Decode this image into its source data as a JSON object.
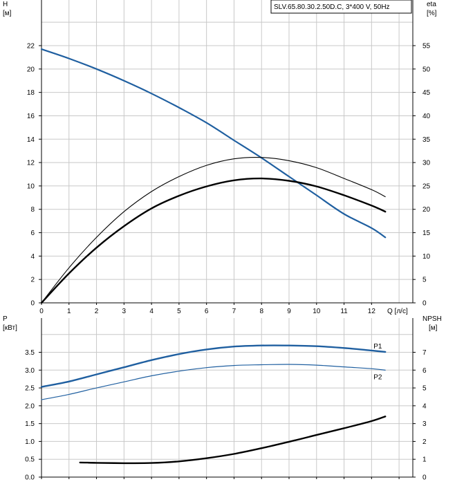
{
  "model_box": {
    "text": "SLV.65.80.30.2.50D.C, 3*400 V, 50Hz"
  },
  "colors": {
    "blue": "#1f5fa0",
    "black": "#000000",
    "grid": "#c8c8c8"
  },
  "top": {
    "left_label": [
      "H",
      "[м]"
    ],
    "right_label": [
      "eta",
      "[%]"
    ],
    "x_label": "Q [л/с]"
  },
  "bottom": {
    "left_label": [
      "P",
      "[кВт]"
    ],
    "right_label": [
      "NPSH",
      "[м]"
    ]
  },
  "chart_data": [
    {
      "type": "line",
      "title": "",
      "xlabel": "Q [л/с]",
      "ylabel": "H [м]",
      "y2label": "eta [%]",
      "xlim": [
        0,
        13.5
      ],
      "ylim": [
        0,
        24.5
      ],
      "y2lim": [
        0,
        61.25
      ],
      "x_ticks": [
        "0",
        "1",
        "2",
        "3",
        "4",
        "5",
        "6",
        "7",
        "8",
        "9",
        "10",
        "11",
        "12"
      ],
      "y_ticks": [
        "0",
        "2",
        "4",
        "6",
        "8",
        "10",
        "12",
        "14",
        "16",
        "18",
        "20",
        "22"
      ],
      "y2_ticks": [
        "0",
        "5",
        "10",
        "15",
        "20",
        "25",
        "30",
        "35",
        "40",
        "45",
        "50",
        "55"
      ],
      "grid": true,
      "series": [
        {
          "name": "H",
          "axis": "left",
          "color": "#1f5fa0",
          "width": 2.2,
          "x": [
            0,
            1,
            2,
            3,
            4,
            5,
            6,
            7,
            8,
            9,
            10,
            11,
            12,
            12.5
          ],
          "y": [
            21.7,
            20.9,
            20.0,
            19.0,
            17.9,
            16.7,
            15.4,
            13.9,
            12.4,
            10.8,
            9.2,
            7.6,
            6.4,
            5.6
          ]
        },
        {
          "name": "",
          "axis": "right",
          "color": "#000000",
          "width": 1.1,
          "x": [
            0,
            1,
            2,
            3,
            4,
            5,
            6,
            7,
            8,
            9,
            10,
            11,
            12,
            12.5
          ],
          "y": [
            0,
            7.5,
            14.0,
            19.5,
            23.8,
            27.0,
            29.4,
            30.8,
            31.1,
            30.4,
            28.9,
            26.6,
            24.2,
            22.7
          ]
        },
        {
          "name": "",
          "axis": "right",
          "color": "#000000",
          "width": 2.4,
          "x": [
            0,
            1,
            2,
            3,
            4,
            5,
            6,
            7,
            8,
            9,
            10,
            11,
            12,
            12.5
          ],
          "y": [
            0,
            6.3,
            11.8,
            16.4,
            20.2,
            22.9,
            24.9,
            26.2,
            26.6,
            26.1,
            24.9,
            23.0,
            20.8,
            19.5
          ]
        }
      ]
    },
    {
      "type": "line",
      "title": "",
      "xlabel": "",
      "ylabel": "P [кВт]",
      "y2label": "NPSH [м]",
      "xlim": [
        0,
        13.5
      ],
      "ylim": [
        0,
        4.15
      ],
      "y2lim": [
        0,
        8.3
      ],
      "y_ticks": [
        "0.0",
        "0.5",
        "1.0",
        "1.5",
        "2.0",
        "2.5",
        "3.0",
        "3.5"
      ],
      "y2_ticks": [
        "0",
        "1",
        "2",
        "3",
        "4",
        "5",
        "6",
        "7"
      ],
      "grid": true,
      "series": [
        {
          "name": "P1",
          "axis": "left",
          "color": "#1f5fa0",
          "width": 2.4,
          "x": [
            0,
            1,
            2,
            3,
            4,
            5,
            6,
            7,
            8,
            9,
            10,
            11,
            12,
            12.5
          ],
          "y": [
            2.53,
            2.68,
            2.88,
            3.08,
            3.28,
            3.45,
            3.58,
            3.66,
            3.69,
            3.69,
            3.67,
            3.62,
            3.55,
            3.51
          ]
        },
        {
          "name": "P2",
          "axis": "left",
          "color": "#1f5fa0",
          "width": 1.2,
          "x": [
            0,
            1,
            2,
            3,
            4,
            5,
            6,
            7,
            8,
            9,
            10,
            11,
            12,
            12.5
          ],
          "y": [
            2.17,
            2.32,
            2.5,
            2.67,
            2.84,
            2.97,
            3.07,
            3.13,
            3.15,
            3.16,
            3.14,
            3.09,
            3.04,
            3.0
          ]
        },
        {
          "name": "",
          "axis": "right",
          "color": "#000000",
          "width": 2.4,
          "x": [
            1.4,
            2,
            3,
            4,
            5,
            6,
            7,
            8,
            9,
            10,
            11,
            12,
            12.5
          ],
          "y": [
            0.82,
            0.8,
            0.78,
            0.79,
            0.88,
            1.06,
            1.3,
            1.62,
            1.98,
            2.36,
            2.74,
            3.14,
            3.4
          ]
        }
      ]
    }
  ]
}
